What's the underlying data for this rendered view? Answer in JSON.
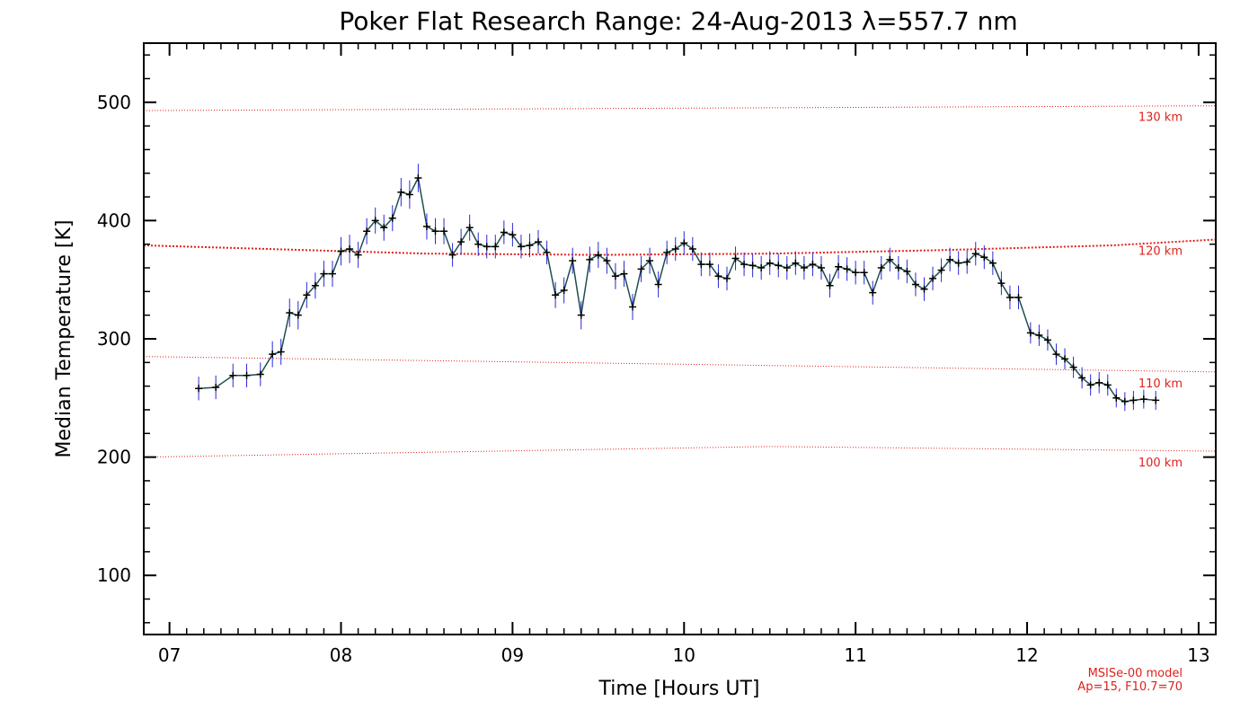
{
  "chart_data": {
    "type": "line",
    "title": "Poker Flat Research Range: 24-Aug-2013 λ=557.7 nm",
    "xlabel": "Time [Hours UT]",
    "ylabel": "Median Temperature [K]",
    "xlim": [
      6.85,
      13.1
    ],
    "ylim": [
      50,
      550
    ],
    "x_ticks": [
      7,
      8,
      9,
      10,
      11,
      12,
      13
    ],
    "x_tick_labels": [
      "07",
      "08",
      "09",
      "10",
      "11",
      "12",
      "13"
    ],
    "y_ticks": [
      100,
      200,
      300,
      400,
      500
    ],
    "y_tick_labels": [
      "100",
      "200",
      "300",
      "400",
      "500"
    ],
    "grid": false,
    "colors": {
      "line": "#1f4e4f",
      "error_bar": "#2a2ad6",
      "marker": "#000000",
      "model": "#e0201c"
    },
    "series": [
      {
        "points": [
          [
            7.17,
            258,
            10
          ],
          [
            7.27,
            259,
            10
          ],
          [
            7.37,
            269,
            10
          ],
          [
            7.45,
            269,
            10
          ],
          [
            7.53,
            270,
            10
          ],
          [
            7.6,
            287,
            11
          ],
          [
            7.65,
            289,
            11
          ],
          [
            7.7,
            322,
            12
          ],
          [
            7.75,
            320,
            12
          ],
          [
            7.8,
            337,
            11
          ],
          [
            7.85,
            345,
            11
          ],
          [
            7.9,
            355,
            11
          ],
          [
            7.95,
            355,
            11
          ],
          [
            8.0,
            374,
            12
          ],
          [
            8.05,
            376,
            12
          ],
          [
            8.1,
            371,
            11
          ],
          [
            8.15,
            391,
            11
          ],
          [
            8.2,
            400,
            11
          ],
          [
            8.25,
            394,
            11
          ],
          [
            8.3,
            402,
            11
          ],
          [
            8.35,
            424,
            12
          ],
          [
            8.4,
            422,
            12
          ],
          [
            8.45,
            436,
            12
          ],
          [
            8.5,
            395,
            11
          ],
          [
            8.55,
            391,
            11
          ],
          [
            8.6,
            391,
            11
          ],
          [
            8.65,
            371,
            10
          ],
          [
            8.7,
            382,
            11
          ],
          [
            8.75,
            394,
            11
          ],
          [
            8.8,
            380,
            10
          ],
          [
            8.85,
            378,
            10
          ],
          [
            8.9,
            378,
            10
          ],
          [
            8.95,
            390,
            10
          ],
          [
            9.0,
            388,
            10
          ],
          [
            9.05,
            378,
            10
          ],
          [
            9.1,
            379,
            10
          ],
          [
            9.15,
            382,
            10
          ],
          [
            9.2,
            373,
            10
          ],
          [
            9.25,
            337,
            11
          ],
          [
            9.3,
            341,
            11
          ],
          [
            9.35,
            366,
            11
          ],
          [
            9.4,
            320,
            12
          ],
          [
            9.45,
            367,
            11
          ],
          [
            9.5,
            371,
            11
          ],
          [
            9.55,
            366,
            11
          ],
          [
            9.6,
            353,
            11
          ],
          [
            9.65,
            355,
            11
          ],
          [
            9.7,
            327,
            11
          ],
          [
            9.75,
            359,
            11
          ],
          [
            9.8,
            366,
            11
          ],
          [
            9.85,
            346,
            11
          ],
          [
            9.9,
            373,
            10
          ],
          [
            9.95,
            376,
            10
          ],
          [
            10.0,
            381,
            10
          ],
          [
            10.05,
            376,
            10
          ],
          [
            10.1,
            363,
            10
          ],
          [
            10.15,
            363,
            10
          ],
          [
            10.2,
            353,
            10
          ],
          [
            10.25,
            351,
            10
          ],
          [
            10.3,
            368,
            10
          ],
          [
            10.35,
            363,
            10
          ],
          [
            10.4,
            362,
            10
          ],
          [
            10.45,
            360,
            10
          ],
          [
            10.5,
            364,
            10
          ],
          [
            10.55,
            362,
            10
          ],
          [
            10.6,
            360,
            10
          ],
          [
            10.65,
            364,
            10
          ],
          [
            10.7,
            360,
            10
          ],
          [
            10.75,
            363,
            10
          ],
          [
            10.8,
            360,
            10
          ],
          [
            10.85,
            345,
            10
          ],
          [
            10.9,
            361,
            10
          ],
          [
            10.95,
            359,
            10
          ],
          [
            11.0,
            356,
            10
          ],
          [
            11.05,
            356,
            10
          ],
          [
            11.1,
            339,
            10
          ],
          [
            11.15,
            360,
            10
          ],
          [
            11.2,
            367,
            10
          ],
          [
            11.25,
            360,
            10
          ],
          [
            11.3,
            357,
            10
          ],
          [
            11.35,
            346,
            10
          ],
          [
            11.4,
            342,
            10
          ],
          [
            11.45,
            351,
            10
          ],
          [
            11.5,
            358,
            10
          ],
          [
            11.55,
            367,
            10
          ],
          [
            11.6,
            364,
            10
          ],
          [
            11.65,
            365,
            10
          ],
          [
            11.7,
            372,
            10
          ],
          [
            11.75,
            369,
            10
          ],
          [
            11.8,
            364,
            10
          ],
          [
            11.85,
            347,
            10
          ],
          [
            11.9,
            335,
            10
          ],
          [
            11.95,
            335,
            10
          ],
          [
            12.02,
            305,
            9
          ],
          [
            12.07,
            303,
            9
          ],
          [
            12.12,
            299,
            9
          ],
          [
            12.17,
            287,
            9
          ],
          [
            12.22,
            283,
            9
          ],
          [
            12.27,
            276,
            9
          ],
          [
            12.32,
            267,
            9
          ],
          [
            12.37,
            261,
            9
          ],
          [
            12.42,
            263,
            9
          ],
          [
            12.47,
            261,
            9
          ],
          [
            12.52,
            250,
            8
          ],
          [
            12.57,
            247,
            8
          ],
          [
            12.62,
            248,
            8
          ],
          [
            12.68,
            249,
            8
          ],
          [
            12.75,
            248,
            8
          ]
        ]
      }
    ],
    "model_lines": [
      {
        "label": "130 km",
        "x": [
          6.85,
          13.1
        ],
        "y": [
          493,
          497
        ]
      },
      {
        "label": "120 km",
        "x": [
          6.85,
          8.5,
          9.5,
          10.5,
          11.5,
          12.5,
          13.1
        ],
        "y": [
          379,
          372,
          371,
          372,
          375,
          379,
          384
        ]
      },
      {
        "label": "110 km",
        "x": [
          6.85,
          13.1
        ],
        "y": [
          285,
          272
        ]
      },
      {
        "label": "100 km",
        "x": [
          6.85,
          10.5,
          13.1
        ],
        "y": [
          200,
          209,
          205
        ]
      }
    ],
    "model_note": [
      "MSISe-00 model",
      "Ap=15, F10.7=70"
    ]
  }
}
